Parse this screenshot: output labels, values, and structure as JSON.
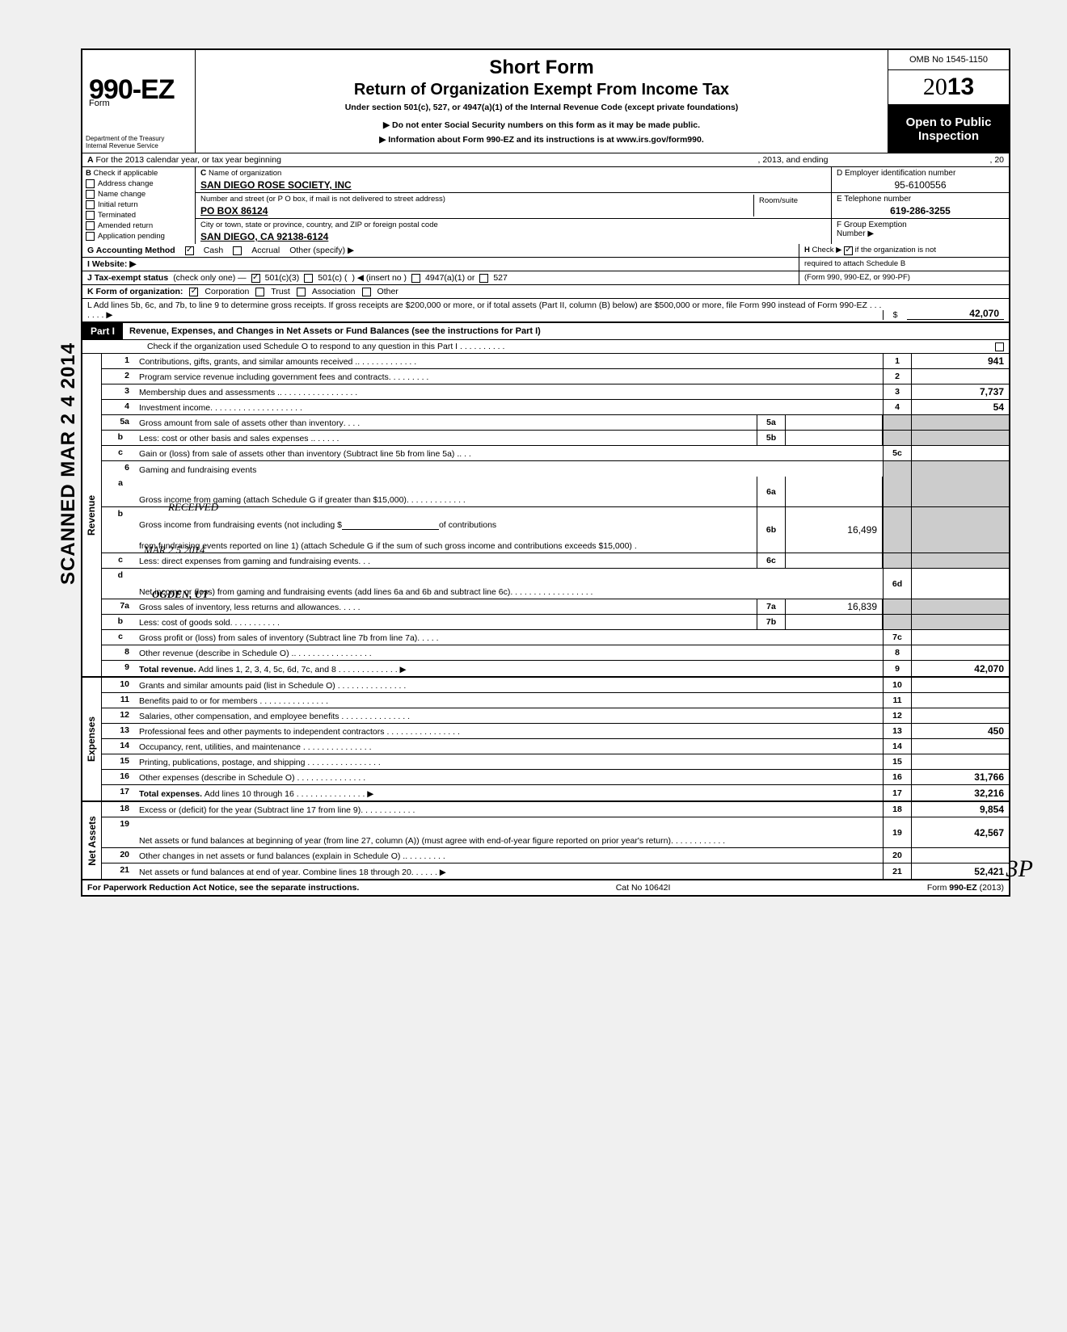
{
  "header": {
    "omb": "OMB No 1545-1150",
    "form_prefix": "Form",
    "form_number": "990-EZ",
    "year_outline": "20",
    "year_bold": "13",
    "short_form": "Short Form",
    "main_title": "Return of Organization Exempt From Income Tax",
    "subtitle": "Under section 501(c), 527, or 4947(a)(1) of the Internal Revenue Code (except private foundations)",
    "instr1": "▶ Do not enter Social Security numbers on this form as it may be made public.",
    "instr2": "▶ Information about Form 990-EZ and its instructions is at www.irs.gov/form990.",
    "dept": "Department of the Treasury\nInternal Revenue Service",
    "open_public": "Open to Public\nInspection"
  },
  "stamp": "SCANNED MAR 2 4 2014",
  "row_a": {
    "label_a": "A",
    "text1": "For the 2013 calendar year, or tax year beginning",
    "text2": ", 2013, and ending",
    "text3": ", 20"
  },
  "section_b": {
    "label": "B",
    "check_label": "Check if applicable",
    "items": [
      "Address change",
      "Name change",
      "Initial return",
      "Terminated",
      "Amended return",
      "Application pending"
    ]
  },
  "section_c": {
    "label_c": "C",
    "name_label": "Name of organization",
    "name_value": "SAN DIEGO ROSE SOCIETY, INC",
    "street_label": "Number and street (or P O box, if mail is not delivered to street address)",
    "room_label": "Room/suite",
    "street_value": "PO BOX 86124",
    "city_label": "City or town, state or province, country, and ZIP or foreign postal code",
    "city_value": "SAN DIEGO, CA 92138-6124"
  },
  "section_d": {
    "label": "D Employer identification number",
    "value": "95-6100556"
  },
  "section_e": {
    "label": "E Telephone number",
    "value": "619-286-3255"
  },
  "section_f": {
    "label": "F Group Exemption",
    "label2": "Number ▶"
  },
  "row_g": {
    "label": "G Accounting Method",
    "cash": "Cash",
    "accrual": "Accrual",
    "other": "Other (specify) ▶"
  },
  "row_h": {
    "label": "H",
    "text": "Check ▶",
    "text2": "if the organization is not",
    "text3": "required to attach Schedule B",
    "text4": "(Form 990, 990-EZ, or 990-PF)"
  },
  "row_i": "I Website: ▶",
  "row_j": {
    "label": "J Tax-exempt status",
    "paren": "(check only one) —",
    "opt1": "501(c)(3)",
    "opt2": "501(c) (",
    "insert": ") ◀ (insert no )",
    "opt3": "4947(a)(1) or",
    "opt4": "527"
  },
  "row_k": {
    "label": "K Form of organization:",
    "opts": [
      "Corporation",
      "Trust",
      "Association",
      "Other"
    ]
  },
  "row_l": {
    "text": "L Add lines 5b, 6c, and 7b, to line 9 to determine gross receipts. If gross receipts are $200,000 or more, or if total assets (Part II, column (B) below) are $500,000 or more, file Form 990 instead of Form 990-EZ .",
    "dollar": "$",
    "amount": "42,070"
  },
  "part1": {
    "label": "Part I",
    "title": "Revenue, Expenses, and Changes in Net Assets or Fund Balances (see the instructions for Part I)",
    "check_text": "Check if the organization used Schedule O to respond to any question in this Part I"
  },
  "revenue": {
    "label": "Revenue",
    "rows": [
      {
        "n": "1",
        "d": "Contributions, gifts, grants, and similar amounts received .",
        "rn": "1",
        "rv": "941"
      },
      {
        "n": "2",
        "d": "Program service revenue including government fees and contracts",
        "rn": "2",
        "rv": ""
      },
      {
        "n": "3",
        "d": "Membership dues and assessments .",
        "rn": "3",
        "rv": "7,737"
      },
      {
        "n": "4",
        "d": "Investment income",
        "rn": "4",
        "rv": "54"
      }
    ],
    "r5a": {
      "n": "5a",
      "d": "Gross amount from sale of assets other than inventory",
      "mn": "5a"
    },
    "r5b": {
      "n": "b",
      "d": "Less: cost or other basis and sales expenses .",
      "mn": "5b"
    },
    "r5c": {
      "n": "c",
      "d": "Gain or (loss) from sale of assets other than inventory (Subtract line 5b from line 5a) .",
      "rn": "5c"
    },
    "r6": {
      "n": "6",
      "d": "Gaming and fundraising events"
    },
    "r6a": {
      "n": "a",
      "d": "Gross income from gaming (attach Schedule G if greater than $15,000)",
      "mn": "6a"
    },
    "r6b": {
      "n": "b",
      "d1": "Gross income from fundraising events (not including  $",
      "d2": "of contributions",
      "d3": "from fundraising events reported on line 1) (attach Schedule G if the sum of such gross income and contributions exceeds $15,000) .",
      "mn": "6b",
      "mv": "16,499"
    },
    "r6c": {
      "n": "c",
      "d": "Less: direct expenses from gaming and fundraising events",
      "mn": "6c"
    },
    "r6d": {
      "n": "d",
      "d": "Net income or (loss) from gaming and fundraising events (add lines 6a and 6b and subtract line 6c)",
      "rn": "6d"
    },
    "r7a": {
      "n": "7a",
      "d": "Gross sales of inventory, less returns and allowances",
      "mn": "7a",
      "mv": "16,839"
    },
    "r7b": {
      "n": "b",
      "d": "Less: cost of goods sold",
      "mn": "7b"
    },
    "r7c": {
      "n": "c",
      "d": "Gross profit or (loss) from sales of inventory (Subtract line 7b from line 7a)",
      "rn": "7c"
    },
    "r8": {
      "n": "8",
      "d": "Other revenue (describe in Schedule O) .",
      "rn": "8"
    },
    "r9": {
      "n": "9",
      "d": "Total revenue. Add lines 1, 2, 3, 4, 5c, 6d, 7c, and 8",
      "rn": "9",
      "rv": "42,070"
    }
  },
  "expenses": {
    "label": "Expenses",
    "rows": [
      {
        "n": "10",
        "d": "Grants and similar amounts paid (list in Schedule O)",
        "rn": "10",
        "rv": ""
      },
      {
        "n": "11",
        "d": "Benefits paid to or for members",
        "rn": "11",
        "rv": ""
      },
      {
        "n": "12",
        "d": "Salaries, other compensation, and employee benefits",
        "rn": "12",
        "rv": ""
      },
      {
        "n": "13",
        "d": "Professional fees and other payments to independent contractors .",
        "rn": "13",
        "rv": "450"
      },
      {
        "n": "14",
        "d": "Occupancy, rent, utilities, and maintenance",
        "rn": "14",
        "rv": ""
      },
      {
        "n": "15",
        "d": "Printing, publications, postage, and shipping .",
        "rn": "15",
        "rv": ""
      },
      {
        "n": "16",
        "d": "Other expenses (describe in Schedule O)",
        "rn": "16",
        "rv": "31,766"
      },
      {
        "n": "17",
        "d": "Total expenses. Add lines 10 through 16",
        "rn": "17",
        "rv": "32,216"
      }
    ]
  },
  "netassets": {
    "label": "Net Assets",
    "r18": {
      "n": "18",
      "d": "Excess or (deficit) for the year (Subtract line 17 from line 9)",
      "rn": "18",
      "rv": "9,854"
    },
    "r19": {
      "n": "19",
      "d": "Net assets or fund balances at beginning of year (from line 27, column (A)) (must agree with end-of-year figure reported on prior year's return)",
      "rn": "19",
      "rv": "42,567"
    },
    "r20": {
      "n": "20",
      "d": "Other changes in net assets or fund balances (explain in Schedule O) .",
      "rn": "20",
      "rv": ""
    },
    "r21": {
      "n": "21",
      "d": "Net assets or fund balances at end of year. Combine lines 18 through 20",
      "rn": "21",
      "rv": "52,421"
    }
  },
  "footer": {
    "left": "For Paperwork Reduction Act Notice, see the separate instructions.",
    "mid": "Cat No 10642I",
    "right": "Form 990-EZ (2013)"
  },
  "handwriting": {
    "received": "RECEIVED",
    "date": "MAR 2 5 2014",
    "ogden": "OGDEN, UT",
    "initial": "3P"
  }
}
